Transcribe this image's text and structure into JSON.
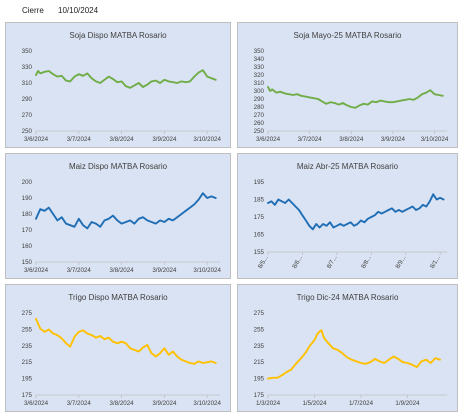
{
  "header": {
    "label": "Cierre",
    "date": "10/10/2024"
  },
  "chart_data": [
    {
      "type": "line",
      "title": "Soja Dispo MATBA Rosario",
      "color": "#70ad47",
      "ylim": [
        250,
        350
      ],
      "yticks": [
        250,
        270,
        290,
        310,
        330,
        350
      ],
      "xticks": [
        "3/6/2024",
        "3/7/2024",
        "3/8/2024",
        "3/9/2024",
        "3/10/2024"
      ],
      "xlim": [
        0,
        4.3
      ],
      "x": [
        0,
        0.05,
        0.1,
        0.2,
        0.3,
        0.4,
        0.5,
        0.6,
        0.7,
        0.8,
        0.9,
        1.0,
        1.1,
        1.2,
        1.3,
        1.4,
        1.5,
        1.6,
        1.7,
        1.8,
        1.9,
        2.0,
        2.1,
        2.2,
        2.3,
        2.4,
        2.5,
        2.6,
        2.7,
        2.8,
        2.9,
        3.0,
        3.1,
        3.2,
        3.3,
        3.4,
        3.5,
        3.6,
        3.7,
        3.8,
        3.9,
        4.0,
        4.1,
        4.2
      ],
      "y": [
        320,
        325,
        322,
        324,
        325,
        321,
        318,
        319,
        313,
        312,
        318,
        321,
        319,
        322,
        316,
        312,
        310,
        314,
        318,
        315,
        311,
        312,
        306,
        304,
        307,
        310,
        305,
        308,
        312,
        313,
        310,
        314,
        312,
        311,
        310,
        312,
        311,
        312,
        318,
        323,
        326,
        318,
        316,
        314
      ],
      "series_values_note": ""
    },
    {
      "type": "line",
      "title": "Soja Mayo-25 MATBA Rosario",
      "color": "#70ad47",
      "ylim": [
        250,
        350
      ],
      "yticks": [
        250,
        260,
        270,
        280,
        290,
        300,
        310,
        320,
        330,
        340,
        350
      ],
      "xticks": [
        "3/6/2024",
        "3/7/2024",
        "3/8/2024",
        "3/9/2024",
        "3/10/2024"
      ],
      "xlim": [
        0,
        4.3
      ],
      "x": [
        0,
        0.05,
        0.1,
        0.2,
        0.3,
        0.4,
        0.5,
        0.6,
        0.7,
        0.8,
        0.9,
        1.0,
        1.1,
        1.2,
        1.3,
        1.4,
        1.5,
        1.6,
        1.7,
        1.8,
        1.9,
        2.0,
        2.1,
        2.2,
        2.3,
        2.4,
        2.5,
        2.6,
        2.7,
        2.8,
        2.9,
        3.0,
        3.1,
        3.2,
        3.3,
        3.4,
        3.5,
        3.6,
        3.7,
        3.8,
        3.9,
        4.0,
        4.1,
        4.2
      ],
      "y": [
        305,
        300,
        302,
        298,
        299,
        297,
        296,
        295,
        296,
        294,
        293,
        292,
        291,
        290,
        287,
        284,
        286,
        285,
        283,
        285,
        282,
        280,
        279,
        282,
        284,
        283,
        287,
        286,
        288,
        287,
        286,
        286,
        287,
        288,
        289,
        290,
        289,
        292,
        296,
        298,
        301,
        296,
        295,
        294
      ]
    },
    {
      "type": "line",
      "title": "Maiz Dispo MATBA Rosario",
      "color": "#1f6eb5",
      "ylim": [
        150,
        200
      ],
      "yticks": [
        150,
        160,
        170,
        180,
        190,
        200
      ],
      "xticks": [
        "3/6/2024",
        "3/7/2024",
        "3/8/2024",
        "3/9/2024",
        "3/10/2024"
      ],
      "xlim": [
        0,
        4.3
      ],
      "x": [
        0,
        0.05,
        0.1,
        0.2,
        0.3,
        0.4,
        0.5,
        0.6,
        0.7,
        0.8,
        0.9,
        1.0,
        1.1,
        1.2,
        1.3,
        1.4,
        1.5,
        1.6,
        1.7,
        1.8,
        1.9,
        2.0,
        2.1,
        2.2,
        2.3,
        2.4,
        2.5,
        2.6,
        2.7,
        2.8,
        2.9,
        3.0,
        3.1,
        3.2,
        3.3,
        3.4,
        3.5,
        3.6,
        3.7,
        3.8,
        3.9,
        4.0,
        4.1,
        4.2
      ],
      "y": [
        177,
        180,
        183,
        182,
        184,
        180,
        176,
        178,
        174,
        173,
        172,
        177,
        173,
        171,
        175,
        174,
        172,
        176,
        177,
        179,
        176,
        174,
        175,
        176,
        174,
        177,
        178,
        176,
        175,
        174,
        176,
        175,
        177,
        176,
        178,
        180,
        182,
        184,
        186,
        189,
        193,
        190,
        191,
        190
      ]
    },
    {
      "type": "line",
      "title": "Maiz Abr-25 MATBA Rosario",
      "color": "#1f6eb5",
      "ylim": [
        155,
        195
      ],
      "yticks": [
        155,
        165,
        175,
        185,
        195
      ],
      "xticks": [
        "8/5...",
        "8/6...",
        "8/7...",
        "8/8...",
        "8/9...",
        "8/1..."
      ],
      "xlim": [
        0,
        5.2
      ],
      "x": [
        0,
        0.1,
        0.2,
        0.3,
        0.4,
        0.5,
        0.6,
        0.7,
        0.8,
        0.9,
        1.0,
        1.1,
        1.2,
        1.3,
        1.4,
        1.5,
        1.6,
        1.7,
        1.8,
        1.9,
        2.0,
        2.1,
        2.2,
        2.3,
        2.4,
        2.5,
        2.6,
        2.7,
        2.8,
        2.9,
        3.0,
        3.1,
        3.2,
        3.3,
        3.4,
        3.5,
        3.6,
        3.7,
        3.8,
        3.9,
        4.0,
        4.1,
        4.2,
        4.3,
        4.4,
        4.5,
        4.6,
        4.7,
        4.8,
        4.9,
        5.0,
        5.1
      ],
      "y": [
        183,
        184,
        182,
        185,
        184,
        183,
        185,
        183,
        181,
        179,
        176,
        173,
        170,
        168,
        171,
        169,
        171,
        170,
        172,
        169,
        170,
        171,
        170,
        171,
        172,
        170,
        171,
        173,
        172,
        174,
        175,
        176,
        178,
        177,
        178,
        179,
        180,
        178,
        179,
        178,
        179,
        180,
        181,
        179,
        180,
        182,
        181,
        184,
        188,
        185,
        186,
        185
      ]
    },
    {
      "type": "line",
      "title": "Trigo Dispo MATBA Rosario",
      "color": "#ffc000",
      "ylim": [
        175,
        275
      ],
      "yticks": [
        175,
        195,
        215,
        235,
        255,
        275
      ],
      "xticks": [
        "3/6/2024",
        "3/7/2024",
        "3/8/2024",
        "3/9/2024",
        "3/10/2024"
      ],
      "xlim": [
        0,
        4.3
      ],
      "x": [
        0,
        0.05,
        0.1,
        0.2,
        0.3,
        0.4,
        0.5,
        0.6,
        0.7,
        0.8,
        0.9,
        1.0,
        1.1,
        1.2,
        1.3,
        1.4,
        1.5,
        1.6,
        1.7,
        1.8,
        1.9,
        2.0,
        2.1,
        2.2,
        2.3,
        2.4,
        2.5,
        2.6,
        2.7,
        2.8,
        2.9,
        3.0,
        3.1,
        3.2,
        3.3,
        3.4,
        3.5,
        3.6,
        3.7,
        3.8,
        3.9,
        4.0,
        4.1,
        4.2
      ],
      "y": [
        268,
        262,
        256,
        252,
        255,
        250,
        248,
        244,
        238,
        234,
        246,
        252,
        254,
        250,
        248,
        245,
        247,
        243,
        245,
        240,
        238,
        240,
        238,
        232,
        230,
        228,
        233,
        236,
        226,
        222,
        226,
        232,
        224,
        228,
        222,
        218,
        216,
        214,
        213,
        216,
        214,
        215,
        216,
        214
      ]
    },
    {
      "type": "line",
      "title": "Trigo Dic-24 MATBA Rosario",
      "color": "#ffc000",
      "ylim": [
        175,
        275
      ],
      "yticks": [
        175,
        195,
        215,
        235,
        255,
        275
      ],
      "xticks": [
        "1/3/2024",
        "1/5/2024",
        "1/7/2024",
        "1/9/2024"
      ],
      "xlim": [
        0,
        3.85
      ],
      "x": [
        0,
        0.1,
        0.2,
        0.3,
        0.4,
        0.5,
        0.6,
        0.7,
        0.8,
        0.9,
        1.0,
        1.05,
        1.1,
        1.15,
        1.2,
        1.3,
        1.4,
        1.5,
        1.6,
        1.7,
        1.8,
        1.9,
        2.0,
        2.1,
        2.2,
        2.3,
        2.4,
        2.5,
        2.6,
        2.7,
        2.8,
        2.9,
        3.0,
        3.1,
        3.2,
        3.3,
        3.4,
        3.5,
        3.6,
        3.7
      ],
      "y": [
        195,
        196,
        196,
        199,
        203,
        206,
        213,
        219,
        226,
        235,
        242,
        248,
        252,
        254,
        245,
        238,
        232,
        230,
        226,
        221,
        218,
        216,
        214,
        213,
        215,
        219,
        216,
        214,
        218,
        222,
        219,
        215,
        214,
        212,
        209,
        216,
        218,
        214,
        220,
        218
      ]
    }
  ]
}
